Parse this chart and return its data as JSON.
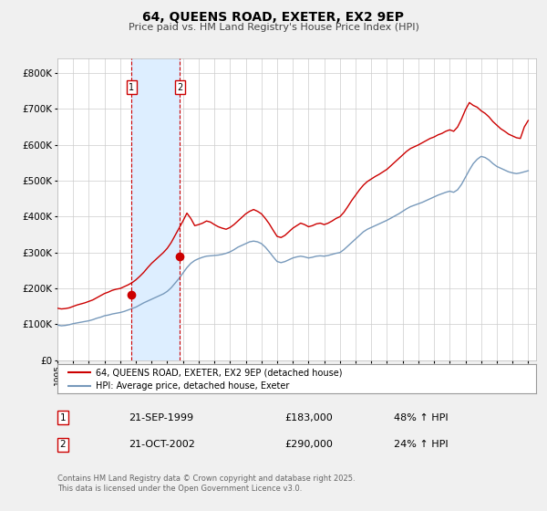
{
  "title": "64, QUEENS ROAD, EXETER, EX2 9EP",
  "subtitle": "Price paid vs. HM Land Registry's House Price Index (HPI)",
  "hpi_label": "HPI: Average price, detached house, Exeter",
  "property_label": "64, QUEENS ROAD, EXETER, EX2 9EP (detached house)",
  "footnote1": "Contains HM Land Registry data © Crown copyright and database right 2025.",
  "footnote2": "This data is licensed under the Open Government Licence v3.0.",
  "red_color": "#cc0000",
  "blue_color": "#7799bb",
  "shading_color": "#ddeeff",
  "background_color": "#f0f0f0",
  "plot_bg": "#ffffff",
  "ylim": [
    0,
    840000
  ],
  "yticks": [
    0,
    100000,
    200000,
    300000,
    400000,
    500000,
    600000,
    700000,
    800000
  ],
  "ytick_labels": [
    "£0",
    "£100K",
    "£200K",
    "£300K",
    "£400K",
    "£500K",
    "£600K",
    "£700K",
    "£800K"
  ],
  "xlim_start": 1995.0,
  "xlim_end": 2025.5,
  "transaction1_date": 1999.72,
  "transaction1_price": 183000,
  "transaction1_label": "21-SEP-1999",
  "transaction1_pct": "48% ↑ HPI",
  "transaction2_date": 2002.8,
  "transaction2_price": 290000,
  "transaction2_label": "21-OCT-2002",
  "transaction2_pct": "24% ↑ HPI",
  "hpi_data_x": [
    1995.0,
    1995.25,
    1995.5,
    1995.75,
    1996.0,
    1996.25,
    1996.5,
    1996.75,
    1997.0,
    1997.25,
    1997.5,
    1997.75,
    1998.0,
    1998.25,
    1998.5,
    1998.75,
    1999.0,
    1999.25,
    1999.5,
    1999.75,
    2000.0,
    2000.25,
    2000.5,
    2000.75,
    2001.0,
    2001.25,
    2001.5,
    2001.75,
    2002.0,
    2002.25,
    2002.5,
    2002.75,
    2003.0,
    2003.25,
    2003.5,
    2003.75,
    2004.0,
    2004.25,
    2004.5,
    2004.75,
    2005.0,
    2005.25,
    2005.5,
    2005.75,
    2006.0,
    2006.25,
    2006.5,
    2006.75,
    2007.0,
    2007.25,
    2007.5,
    2007.75,
    2008.0,
    2008.25,
    2008.5,
    2008.75,
    2009.0,
    2009.25,
    2009.5,
    2009.75,
    2010.0,
    2010.25,
    2010.5,
    2010.75,
    2011.0,
    2011.25,
    2011.5,
    2011.75,
    2012.0,
    2012.25,
    2012.5,
    2012.75,
    2013.0,
    2013.25,
    2013.5,
    2013.75,
    2014.0,
    2014.25,
    2014.5,
    2014.75,
    2015.0,
    2015.25,
    2015.5,
    2015.75,
    2016.0,
    2016.25,
    2016.5,
    2016.75,
    2017.0,
    2017.25,
    2017.5,
    2017.75,
    2018.0,
    2018.25,
    2018.5,
    2018.75,
    2019.0,
    2019.25,
    2019.5,
    2019.75,
    2020.0,
    2020.25,
    2020.5,
    2020.75,
    2021.0,
    2021.25,
    2021.5,
    2021.75,
    2022.0,
    2022.25,
    2022.5,
    2022.75,
    2023.0,
    2023.25,
    2023.5,
    2023.75,
    2024.0,
    2024.25,
    2024.5,
    2024.75,
    2025.0
  ],
  "hpi_data_y": [
    98000,
    96000,
    97000,
    99000,
    102000,
    104000,
    106000,
    108000,
    110000,
    113000,
    117000,
    120000,
    124000,
    126000,
    129000,
    131000,
    133000,
    136000,
    140000,
    144000,
    148000,
    154000,
    160000,
    165000,
    170000,
    175000,
    180000,
    185000,
    192000,
    202000,
    215000,
    228000,
    243000,
    258000,
    270000,
    278000,
    283000,
    287000,
    290000,
    291000,
    292000,
    293000,
    295000,
    298000,
    302000,
    308000,
    315000,
    320000,
    325000,
    330000,
    332000,
    330000,
    325000,
    315000,
    302000,
    288000,
    275000,
    272000,
    275000,
    280000,
    285000,
    288000,
    290000,
    288000,
    285000,
    287000,
    290000,
    291000,
    290000,
    292000,
    295000,
    298000,
    300000,
    308000,
    318000,
    328000,
    338000,
    348000,
    358000,
    365000,
    370000,
    375000,
    380000,
    385000,
    390000,
    396000,
    402000,
    408000,
    415000,
    422000,
    428000,
    432000,
    436000,
    440000,
    445000,
    450000,
    455000,
    460000,
    464000,
    468000,
    471000,
    468000,
    475000,
    490000,
    510000,
    530000,
    548000,
    560000,
    568000,
    565000,
    558000,
    548000,
    540000,
    535000,
    530000,
    525000,
    522000,
    520000,
    522000,
    525000,
    528000
  ],
  "red_data_x": [
    1995.0,
    1995.25,
    1995.5,
    1995.75,
    1996.0,
    1996.25,
    1996.5,
    1996.75,
    1997.0,
    1997.25,
    1997.5,
    1997.75,
    1998.0,
    1998.25,
    1998.5,
    1998.75,
    1999.0,
    1999.25,
    1999.5,
    1999.75,
    2000.0,
    2000.25,
    2000.5,
    2000.75,
    2001.0,
    2001.25,
    2001.5,
    2001.75,
    2002.0,
    2002.25,
    2002.5,
    2002.75,
    2003.0,
    2003.25,
    2003.5,
    2003.75,
    2004.0,
    2004.25,
    2004.5,
    2004.75,
    2005.0,
    2005.25,
    2005.5,
    2005.75,
    2006.0,
    2006.25,
    2006.5,
    2006.75,
    2007.0,
    2007.25,
    2007.5,
    2007.75,
    2008.0,
    2008.25,
    2008.5,
    2008.75,
    2009.0,
    2009.25,
    2009.5,
    2009.75,
    2010.0,
    2010.25,
    2010.5,
    2010.75,
    2011.0,
    2011.25,
    2011.5,
    2011.75,
    2012.0,
    2012.25,
    2012.5,
    2012.75,
    2013.0,
    2013.25,
    2013.5,
    2013.75,
    2014.0,
    2014.25,
    2014.5,
    2014.75,
    2015.0,
    2015.25,
    2015.5,
    2015.75,
    2016.0,
    2016.25,
    2016.5,
    2016.75,
    2017.0,
    2017.25,
    2017.5,
    2017.75,
    2018.0,
    2018.25,
    2018.5,
    2018.75,
    2019.0,
    2019.25,
    2019.5,
    2019.75,
    2020.0,
    2020.25,
    2020.5,
    2020.75,
    2021.0,
    2021.25,
    2021.5,
    2021.75,
    2022.0,
    2022.25,
    2022.5,
    2022.75,
    2023.0,
    2023.25,
    2023.5,
    2023.75,
    2024.0,
    2024.25,
    2024.5,
    2024.75,
    2025.0
  ],
  "red_data_y": [
    145000,
    143000,
    144000,
    146000,
    150000,
    154000,
    157000,
    160000,
    164000,
    168000,
    174000,
    180000,
    186000,
    190000,
    195000,
    198000,
    200000,
    205000,
    210000,
    216000,
    224000,
    234000,
    245000,
    258000,
    270000,
    280000,
    290000,
    300000,
    312000,
    328000,
    348000,
    368000,
    388000,
    410000,
    395000,
    375000,
    378000,
    382000,
    388000,
    385000,
    378000,
    372000,
    368000,
    365000,
    370000,
    378000,
    388000,
    398000,
    408000,
    415000,
    420000,
    415000,
    408000,
    395000,
    380000,
    362000,
    345000,
    342000,
    348000,
    358000,
    368000,
    375000,
    382000,
    378000,
    372000,
    375000,
    380000,
    382000,
    378000,
    382000,
    388000,
    395000,
    400000,
    412000,
    428000,
    445000,
    460000,
    475000,
    488000,
    498000,
    505000,
    512000,
    518000,
    525000,
    532000,
    542000,
    552000,
    562000,
    572000,
    582000,
    590000,
    595000,
    600000,
    606000,
    612000,
    618000,
    622000,
    628000,
    632000,
    638000,
    642000,
    638000,
    650000,
    672000,
    698000,
    718000,
    710000,
    705000,
    695000,
    688000,
    678000,
    665000,
    655000,
    645000,
    638000,
    630000,
    625000,
    620000,
    618000,
    650000,
    668000
  ]
}
